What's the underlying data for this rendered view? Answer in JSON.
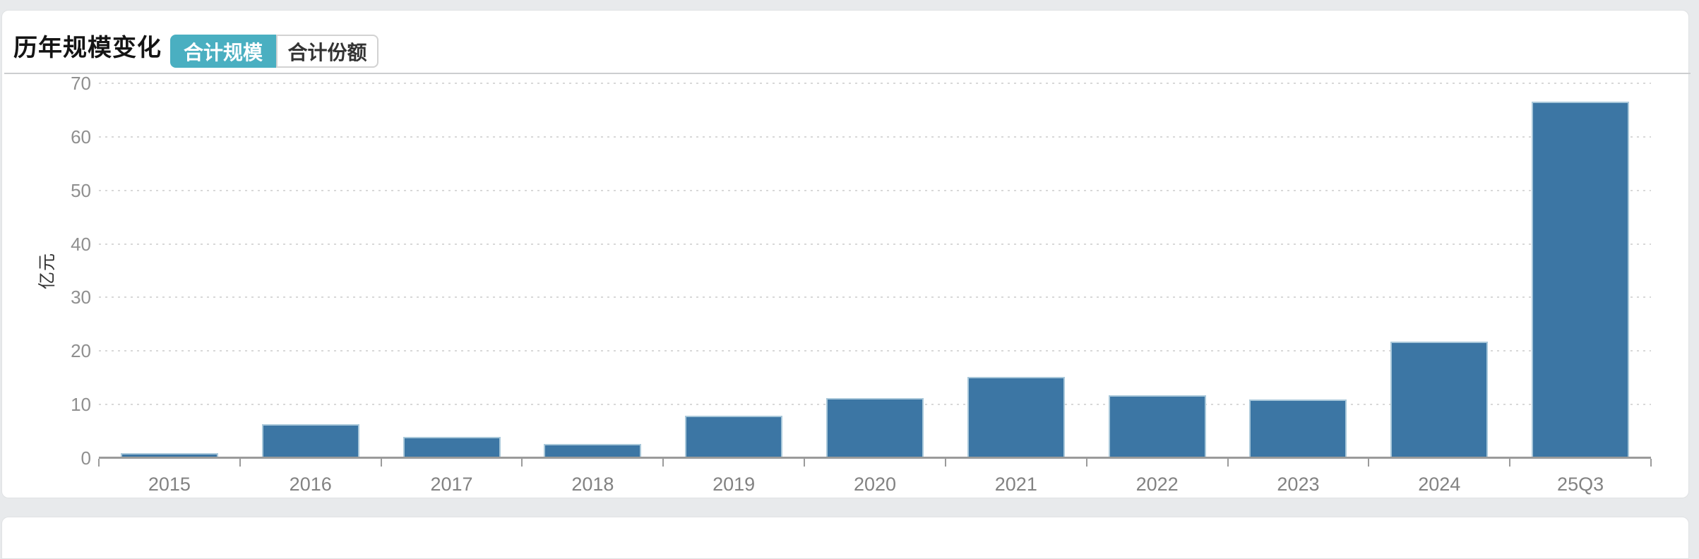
{
  "page": {
    "title": "历年规模变化"
  },
  "tabs": [
    {
      "id": "total-scale",
      "label": "合计规模",
      "active": true
    },
    {
      "id": "total-share",
      "label": "合计份额",
      "active": false
    }
  ],
  "colors": {
    "accent_teal": "#4AAFC1",
    "bar_fill": "#3C76A4",
    "bar_edge": "#A9C8DA",
    "page_background": "#E8EAEC",
    "card_background": "#FFFFFF",
    "axis_line": "#9B9B9B",
    "tick_label": "#8F8F8F",
    "gridline": "#D8D8D8"
  },
  "chart_data": {
    "type": "bar",
    "title": "历年规模变化",
    "categories": [
      "2015",
      "2016",
      "2017",
      "2018",
      "2019",
      "2020",
      "2021",
      "2022",
      "2023",
      "2024",
      "25Q3"
    ],
    "values": [
      0.9,
      6.3,
      3.9,
      2.6,
      7.9,
      11.2,
      15.2,
      11.7,
      11.0,
      21.8,
      66.6
    ],
    "xlabel": "",
    "ylabel": "亿元",
    "ylim": [
      0,
      70
    ],
    "yticks": [
      0,
      10,
      20,
      30,
      40,
      50,
      60,
      70
    ],
    "grid": "horizontal-dotted",
    "legend": "none",
    "series_name": "合计规模"
  }
}
